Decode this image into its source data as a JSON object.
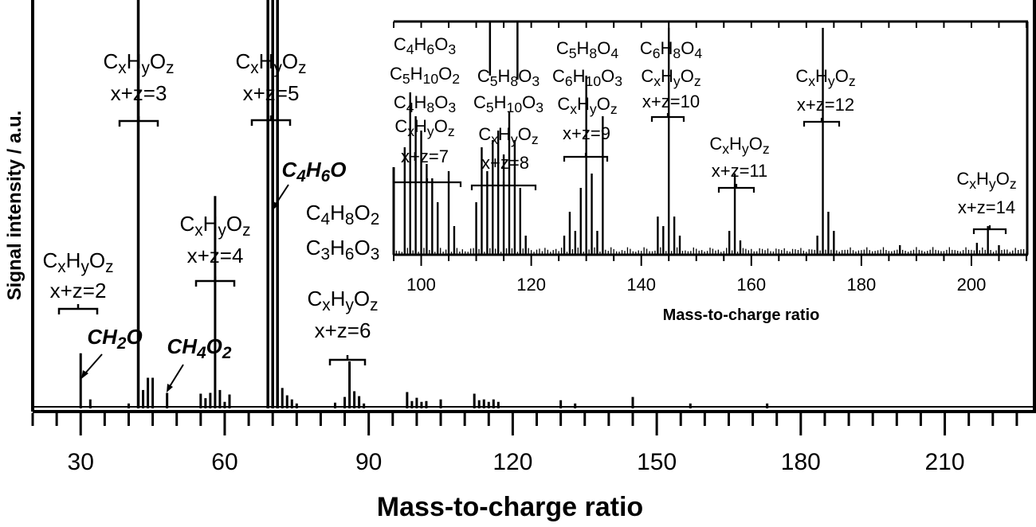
{
  "colors": {
    "default": "#000000",
    "blue": "#1f6fd6",
    "red": "#e8232c"
  },
  "chart_data": [
    {
      "type": "bar",
      "name": "main-spectrum",
      "xlabel": "Mass-to-charge ratio",
      "ylabel": "Signal intensity / a.u.",
      "xlim": [
        20,
        229
      ],
      "ylim": [
        0,
        1
      ],
      "xticks": [
        30,
        60,
        90,
        120,
        150,
        180,
        210
      ],
      "x_minor_step": 5,
      "peaks": [
        {
          "x": 30,
          "y": 0.135
        },
        {
          "x": 32,
          "y": 0.022
        },
        {
          "x": 40,
          "y": 0.012
        },
        {
          "x": 42,
          "y": 1.0
        },
        {
          "x": 43,
          "y": 0.045
        },
        {
          "x": 44,
          "y": 0.075
        },
        {
          "x": 45,
          "y": 0.075
        },
        {
          "x": 48,
          "y": 0.038
        },
        {
          "x": 55,
          "y": 0.036
        },
        {
          "x": 56,
          "y": 0.025
        },
        {
          "x": 57,
          "y": 0.038
        },
        {
          "x": 58,
          "y": 0.52
        },
        {
          "x": 59,
          "y": 0.045
        },
        {
          "x": 60,
          "y": 0.016
        },
        {
          "x": 61,
          "y": 0.034
        },
        {
          "x": 69,
          "y": 1.0
        },
        {
          "x": 70,
          "y": 1.0
        },
        {
          "x": 71,
          "y": 1.0
        },
        {
          "x": 72,
          "y": 0.05
        },
        {
          "x": 73,
          "y": 0.032
        },
        {
          "x": 74,
          "y": 0.022
        },
        {
          "x": 75,
          "y": 0.012
        },
        {
          "x": 83,
          "y": 0.014
        },
        {
          "x": 85,
          "y": 0.028
        },
        {
          "x": 86,
          "y": 0.115
        },
        {
          "x": 87,
          "y": 0.042
        },
        {
          "x": 88,
          "y": 0.03
        },
        {
          "x": 89,
          "y": 0.012
        },
        {
          "x": 98,
          "y": 0.04
        },
        {
          "x": 99,
          "y": 0.018
        },
        {
          "x": 100,
          "y": 0.026
        },
        {
          "x": 101,
          "y": 0.016
        },
        {
          "x": 102,
          "y": 0.018
        },
        {
          "x": 105,
          "y": 0.022
        },
        {
          "x": 112,
          "y": 0.036
        },
        {
          "x": 113,
          "y": 0.02
        },
        {
          "x": 114,
          "y": 0.022
        },
        {
          "x": 115,
          "y": 0.016
        },
        {
          "x": 116,
          "y": 0.022
        },
        {
          "x": 117,
          "y": 0.016
        },
        {
          "x": 130,
          "y": 0.02
        },
        {
          "x": 133,
          "y": 0.012
        },
        {
          "x": 145,
          "y": 0.028
        },
        {
          "x": 157,
          "y": 0.012
        },
        {
          "x": 173,
          "y": 0.012
        }
      ],
      "annotations": [
        {
          "x": 30,
          "sub": "x+z=2"
        },
        {
          "x": 42,
          "sub": "x+z=3"
        },
        {
          "x": 58,
          "sub": "x+z=4"
        },
        {
          "x": 70,
          "sub": "x+z=5"
        },
        {
          "x": 86,
          "sub": "x+z=6",
          "extra_red": [
            "C4H8O2",
            "C3H6O3"
          ]
        }
      ],
      "molecule_labels": [
        "CH2O",
        "CH4O2",
        "C4H6O"
      ]
    },
    {
      "type": "bar",
      "name": "inset-spectrum",
      "xlabel": "Mass-to-charge ratio",
      "xlim": [
        95,
        210
      ],
      "xticks": [
        100,
        120,
        140,
        160,
        180,
        200
      ],
      "x_minor_step": 5,
      "peaks": [
        {
          "x": 97,
          "y": 0.45
        },
        {
          "x": 98,
          "y": 0.68
        },
        {
          "x": 99,
          "y": 0.58
        },
        {
          "x": 100,
          "y": 0.52
        },
        {
          "x": 101,
          "y": 0.38
        },
        {
          "x": 102,
          "y": 0.32
        },
        {
          "x": 103,
          "y": 0.22
        },
        {
          "x": 105,
          "y": 0.35
        },
        {
          "x": 106,
          "y": 0.12
        },
        {
          "x": 110,
          "y": 0.22
        },
        {
          "x": 111,
          "y": 0.45
        },
        {
          "x": 112,
          "y": 0.35
        },
        {
          "x": 113,
          "y": 0.48
        },
        {
          "x": 114,
          "y": 0.52
        },
        {
          "x": 115,
          "y": 0.42
        },
        {
          "x": 116,
          "y": 0.6
        },
        {
          "x": 117,
          "y": 0.48
        },
        {
          "x": 118,
          "y": 0.28
        },
        {
          "x": 119,
          "y": 0.08
        },
        {
          "x": 126,
          "y": 0.08
        },
        {
          "x": 127,
          "y": 0.18
        },
        {
          "x": 128,
          "y": 0.1
        },
        {
          "x": 129,
          "y": 0.28
        },
        {
          "x": 130,
          "y": 0.75
        },
        {
          "x": 131,
          "y": 0.34
        },
        {
          "x": 132,
          "y": 0.1
        },
        {
          "x": 133,
          "y": 0.58
        },
        {
          "x": 143,
          "y": 0.16
        },
        {
          "x": 144,
          "y": 0.12
        },
        {
          "x": 145,
          "y": 0.95
        },
        {
          "x": 146,
          "y": 0.16
        },
        {
          "x": 147,
          "y": 0.08
        },
        {
          "x": 156,
          "y": 0.1
        },
        {
          "x": 157,
          "y": 0.34
        },
        {
          "x": 158,
          "y": 0.06
        },
        {
          "x": 172,
          "y": 0.08
        },
        {
          "x": 173,
          "y": 0.95
        },
        {
          "x": 174,
          "y": 0.18
        },
        {
          "x": 175,
          "y": 0.1
        },
        {
          "x": 187,
          "y": 0.04
        },
        {
          "x": 201,
          "y": 0.05
        },
        {
          "x": 203,
          "y": 0.12
        },
        {
          "x": 205,
          "y": 0.04
        }
      ],
      "annotations": [
        {
          "x": 101,
          "sub": "x+z=7",
          "blue": [
            "C4H6O3"
          ],
          "red": [
            "C5H10O2",
            "C4H8O3"
          ]
        },
        {
          "x": 115,
          "sub": "x+z=8",
          "blue": [
            "C5H8O3"
          ],
          "red": [
            "C5H10O3"
          ]
        },
        {
          "x": 130,
          "sub": "x+z=9",
          "blue": [
            "C5H8O4"
          ],
          "red": [
            "C6H10O3"
          ]
        },
        {
          "x": 145,
          "sub": "x+z=10",
          "blue": [
            "C6H8O4"
          ],
          "red": []
        },
        {
          "x": 157,
          "sub": "x+z=11"
        },
        {
          "x": 173,
          "sub": "x+z=12"
        },
        {
          "x": 203,
          "sub": "x+z=14"
        }
      ]
    }
  ],
  "formula_generic": "CxHyOz"
}
